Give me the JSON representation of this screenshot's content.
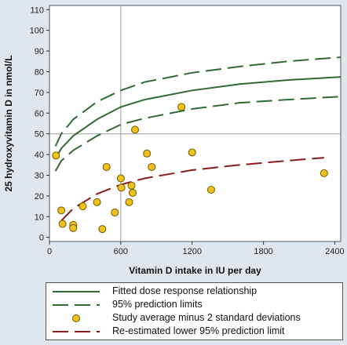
{
  "chart_data": {
    "type": "scatter",
    "xlabel": "Vitamin D intake in IU per day",
    "ylabel": "25 hydroxyvitamin D in nmol/L",
    "xlim": [
      0,
      2450
    ],
    "ylim": [
      -2,
      112
    ],
    "x_ticks": [
      0,
      600,
      1200,
      1800,
      2400
    ],
    "y_ticks": [
      0,
      10,
      20,
      30,
      40,
      50,
      60,
      70,
      80,
      90,
      100,
      110
    ],
    "reference_lines": {
      "x": 600,
      "y": 50
    },
    "grid": false,
    "legend_position": "bottom",
    "colors": {
      "fitted": "#2e6b32",
      "prediction": "#2e6b32",
      "points_fill": "#f2c21b",
      "points_stroke": "#6b5a00",
      "reestimated": "#8b1a1a",
      "reference": "#9a9a9a"
    },
    "series": [
      {
        "name": "Fitted dose response relationship",
        "kind": "line",
        "style": "solid",
        "x": [
          50,
          100,
          200,
          400,
          600,
          800,
          1200,
          1600,
          2000,
          2450
        ],
        "y": [
          38,
          43,
          49,
          57,
          63,
          66.5,
          71,
          74,
          76,
          77.5
        ]
      },
      {
        "name": "95% prediction limits",
        "kind": "line",
        "style": "long-dash",
        "x": [
          50,
          100,
          200,
          400,
          600,
          800,
          1200,
          1600,
          2000,
          2450
        ],
        "y": [
          44,
          50,
          57,
          65.5,
          71,
          75,
          79.5,
          82.5,
          85,
          87
        ]
      },
      {
        "name": "",
        "kind": "line",
        "style": "long-dash",
        "x": [
          50,
          100,
          200,
          400,
          600,
          800,
          1200,
          1600,
          2000,
          2450
        ],
        "y": [
          32,
          37,
          42,
          49,
          54.5,
          57.5,
          62,
          65,
          66.5,
          68
        ]
      },
      {
        "name": "Study average minus 2 standard deviations",
        "kind": "scatter",
        "points": [
          [
            55,
            39.5
          ],
          [
            100,
            13
          ],
          [
            110,
            6.5
          ],
          [
            200,
            6
          ],
          [
            200,
            4.5
          ],
          [
            280,
            15
          ],
          [
            400,
            17
          ],
          [
            445,
            4
          ],
          [
            480,
            34
          ],
          [
            550,
            12
          ],
          [
            600,
            28.5
          ],
          [
            605,
            24
          ],
          [
            670,
            17
          ],
          [
            690,
            25
          ],
          [
            700,
            21.5
          ],
          [
            720,
            52
          ],
          [
            820,
            40.5
          ],
          [
            860,
            34
          ],
          [
            1110,
            63
          ],
          [
            1200,
            41
          ],
          [
            1360,
            23
          ],
          [
            2310,
            31
          ]
        ]
      },
      {
        "name": "Re-estimated lower 95% prediction limit",
        "kind": "line",
        "style": "long-dash",
        "x": [
          100,
          200,
          400,
          600,
          800,
          1000,
          1200,
          1600,
          2000,
          2310
        ],
        "y": [
          8,
          14,
          21,
          25.5,
          28.5,
          30.5,
          32.5,
          35,
          37,
          38.5
        ]
      }
    ]
  },
  "legend": {
    "items": [
      {
        "label": "Fitted dose response relationship",
        "style": "solid",
        "color": "#2e6b32"
      },
      {
        "label": "95% prediction limits",
        "style": "long-dash",
        "color": "#2e6b32"
      },
      {
        "label": "Study average minus 2 standard deviations",
        "style": "marker",
        "color": "#f2c21b"
      },
      {
        "label": "Re-estimated lower 95% prediction limit",
        "style": "long-dash",
        "color": "#8b1a1a"
      }
    ]
  }
}
